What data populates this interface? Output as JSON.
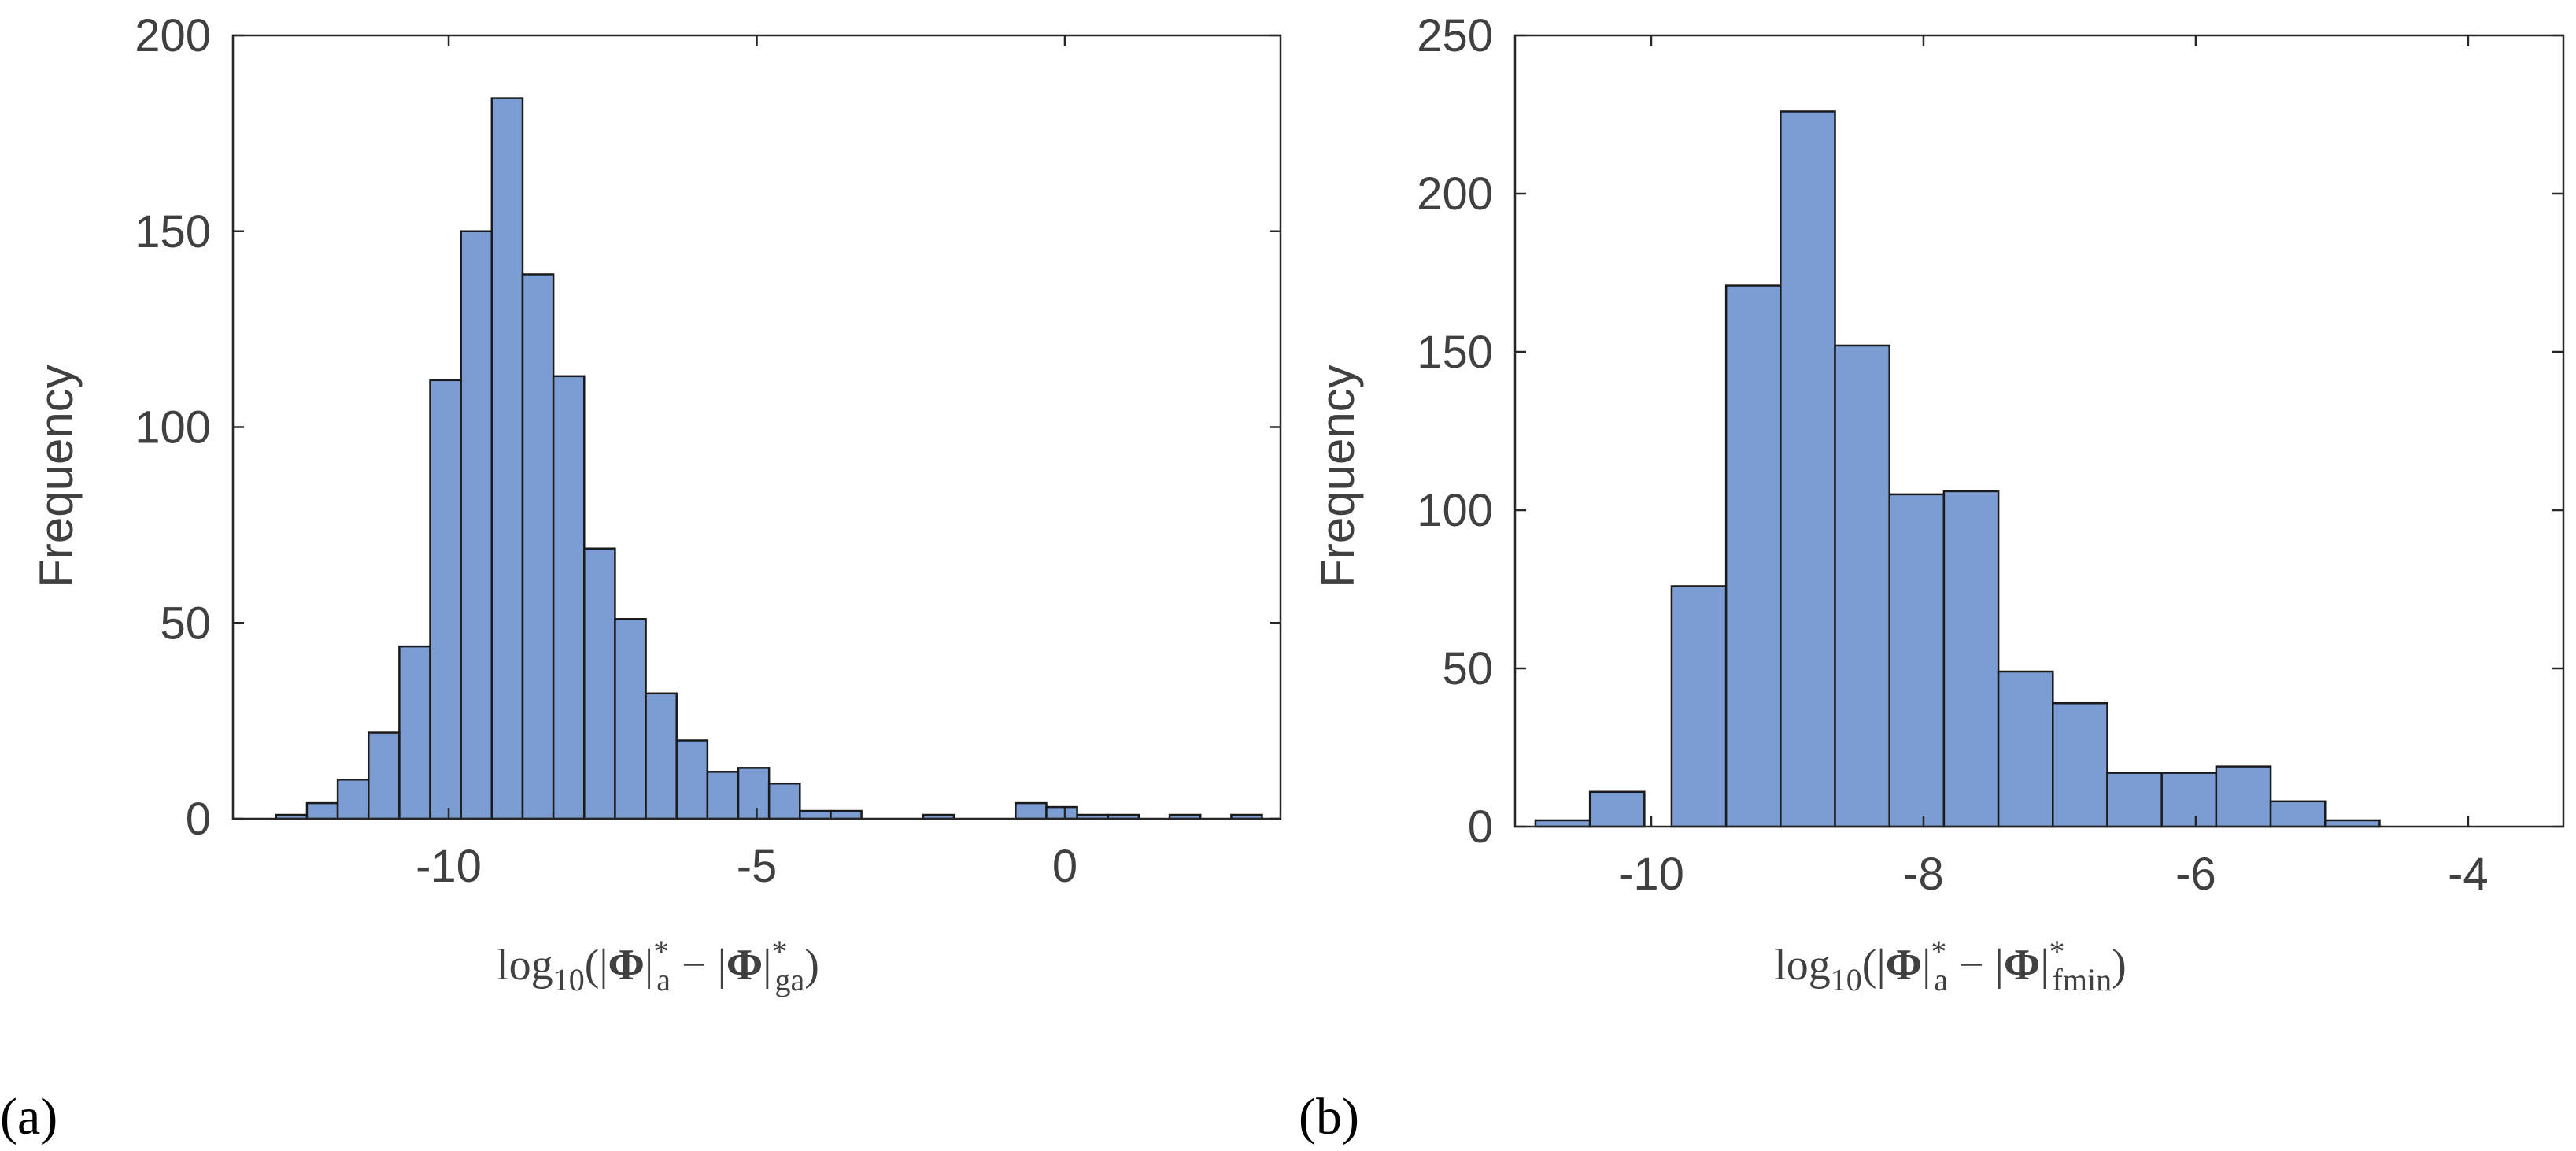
{
  "chart_data": [
    {
      "type": "histogram",
      "panel_label": "(a)",
      "ylabel": "Frequency",
      "xlabel": {
        "lead": "log",
        "sub": "10",
        "open": "(|",
        "sym1": "Φ",
        "bar1": "|",
        "sup1": "*",
        "sub1": "a",
        "minus": "−",
        "bar2": "|",
        "sym2": "Φ",
        "bar3": "|",
        "sup2": "*",
        "sub2": "ga",
        "close": ")"
      },
      "xlim": [
        -13.5,
        3.5
      ],
      "ylim": [
        0,
        200
      ],
      "xticks": [
        -10,
        -5,
        0
      ],
      "xtick_labels": [
        "-10",
        "-5",
        "0"
      ],
      "yticks": [
        0,
        50,
        100,
        150,
        200
      ],
      "ytick_labels": [
        "0",
        "50",
        "100",
        "150",
        "200"
      ],
      "bin_width": 0.5,
      "bins": [
        {
          "start": -12.8,
          "count": 1
        },
        {
          "start": -12.3,
          "count": 4
        },
        {
          "start": -11.8,
          "count": 10
        },
        {
          "start": -11.3,
          "count": 22
        },
        {
          "start": -10.8,
          "count": 44
        },
        {
          "start": -10.3,
          "count": 112
        },
        {
          "start": -9.8,
          "count": 150
        },
        {
          "start": -9.3,
          "count": 184
        },
        {
          "start": -8.8,
          "count": 139
        },
        {
          "start": -8.3,
          "count": 113
        },
        {
          "start": -7.8,
          "count": 69
        },
        {
          "start": -7.3,
          "count": 51
        },
        {
          "start": -6.8,
          "count": 32
        },
        {
          "start": -6.3,
          "count": 20
        },
        {
          "start": -5.8,
          "count": 12
        },
        {
          "start": -5.3,
          "count": 13
        },
        {
          "start": -4.8,
          "count": 9
        },
        {
          "start": -4.3,
          "count": 2
        },
        {
          "start": -3.8,
          "count": 2
        },
        {
          "start": -2.3,
          "count": 1
        },
        {
          "start": -0.8,
          "count": 4
        },
        {
          "start": -0.3,
          "count": 3
        },
        {
          "start": 0.2,
          "count": 1
        },
        {
          "start": 0.7,
          "count": 1
        },
        {
          "start": 1.7,
          "count": 1
        },
        {
          "start": 2.7,
          "count": 1
        }
      ]
    },
    {
      "type": "histogram",
      "panel_label": "(b)",
      "ylabel": "Frequency",
      "xlabel": {
        "lead": "log",
        "sub": "10",
        "open": "(|",
        "sym1": "Φ",
        "bar1": "|",
        "sup1": "*",
        "sub1": "a",
        "minus": "−",
        "bar2": "|",
        "sym2": "Φ",
        "bar3": "|",
        "sup2": "*",
        "sub2": "fmin",
        "close": ")"
      },
      "xlim": [
        -11,
        -3.3
      ],
      "ylim": [
        0,
        250
      ],
      "xticks": [
        -10,
        -8,
        -6,
        -4
      ],
      "xtick_labels": [
        "-10",
        "-8",
        "-6",
        "-4"
      ],
      "yticks": [
        0,
        50,
        100,
        150,
        200,
        250
      ],
      "ytick_labels": [
        "0",
        "50",
        "100",
        "150",
        "200",
        "250"
      ],
      "bin_width": 0.4,
      "bins": [
        {
          "start": -10.85,
          "count": 2
        },
        {
          "start": -10.45,
          "count": 11
        },
        {
          "start": -10.05,
          "count": 0
        },
        {
          "start": -9.85,
          "count": 76
        },
        {
          "start": -9.45,
          "count": 171
        },
        {
          "start": -9.05,
          "count": 226
        },
        {
          "start": -8.65,
          "count": 152
        },
        {
          "start": -8.25,
          "count": 105
        },
        {
          "start": -7.85,
          "count": 106
        },
        {
          "start": -7.45,
          "count": 49
        },
        {
          "start": -7.05,
          "count": 39
        },
        {
          "start": -6.65,
          "count": 17
        },
        {
          "start": -6.25,
          "count": 17
        },
        {
          "start": -5.85,
          "count": 19
        },
        {
          "start": -5.45,
          "count": 8
        },
        {
          "start": -5.05,
          "count": 2
        }
      ]
    }
  ]
}
